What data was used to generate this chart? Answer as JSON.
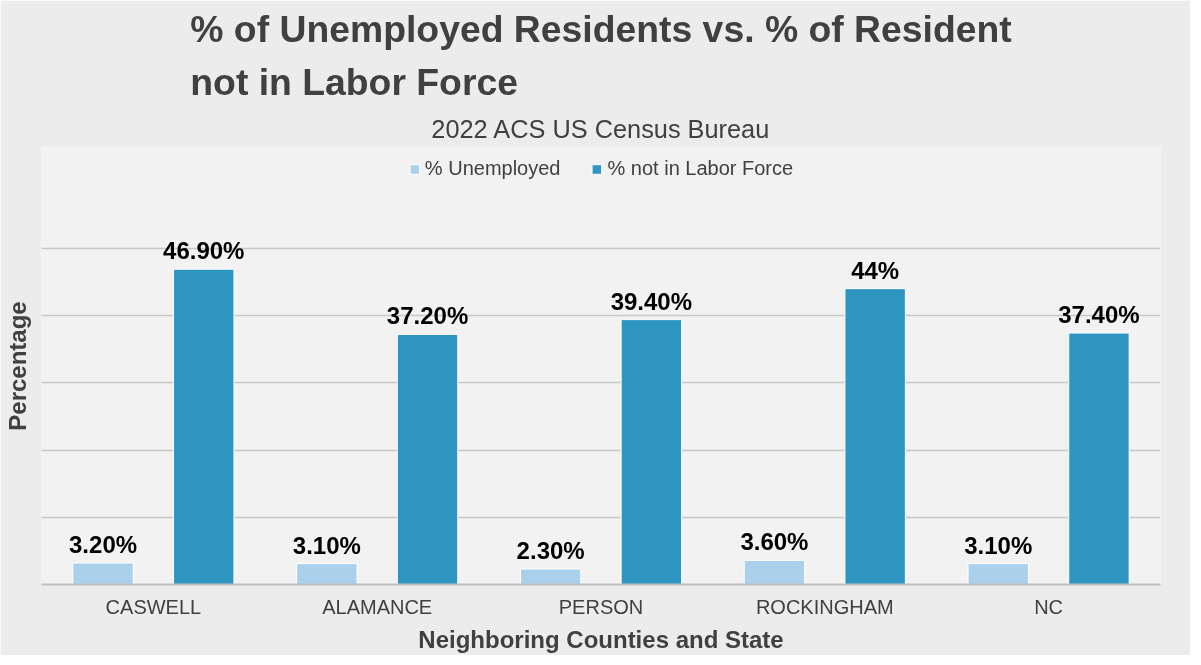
{
  "chart_data": {
    "type": "bar",
    "title": "% of Unemployed Residents vs. % of Resident\nnot in Labor Force",
    "subtitle": "2022 ACS US Census Bureau",
    "xlabel": "Neighboring Counties and State",
    "ylabel": "Percentage",
    "categories": [
      "CASWELL",
      "ALAMANCE",
      "PERSON",
      "ROCKINGHAM",
      "NC"
    ],
    "series": [
      {
        "name": "% Unemployed",
        "color": "#abd0ec",
        "values": [
          3.2,
          3.1,
          2.3,
          3.6,
          3.1
        ],
        "value_labels": [
          "3.20%",
          "3.10%",
          "2.30%",
          "3.60%",
          "3.10%"
        ]
      },
      {
        "name": "% not in Labor Force",
        "color": "#2e95c0",
        "values": [
          46.9,
          37.2,
          39.4,
          44,
          37.4
        ],
        "value_labels": [
          "46.90%",
          "37.20%",
          "39.40%",
          "44%",
          "37.40%"
        ]
      }
    ],
    "ylim": [
      0,
      65
    ],
    "yticks": [
      {
        "value": 0,
        "label": null
      },
      {
        "value": 10,
        "label": null
      },
      {
        "value": 20,
        "label": null
      },
      {
        "value": 30,
        "label": null
      },
      {
        "value": 40,
        "label": null
      },
      {
        "value": 50,
        "label": null
      }
    ],
    "tick_labels": "x",
    "grid": "y",
    "legend": "top"
  }
}
